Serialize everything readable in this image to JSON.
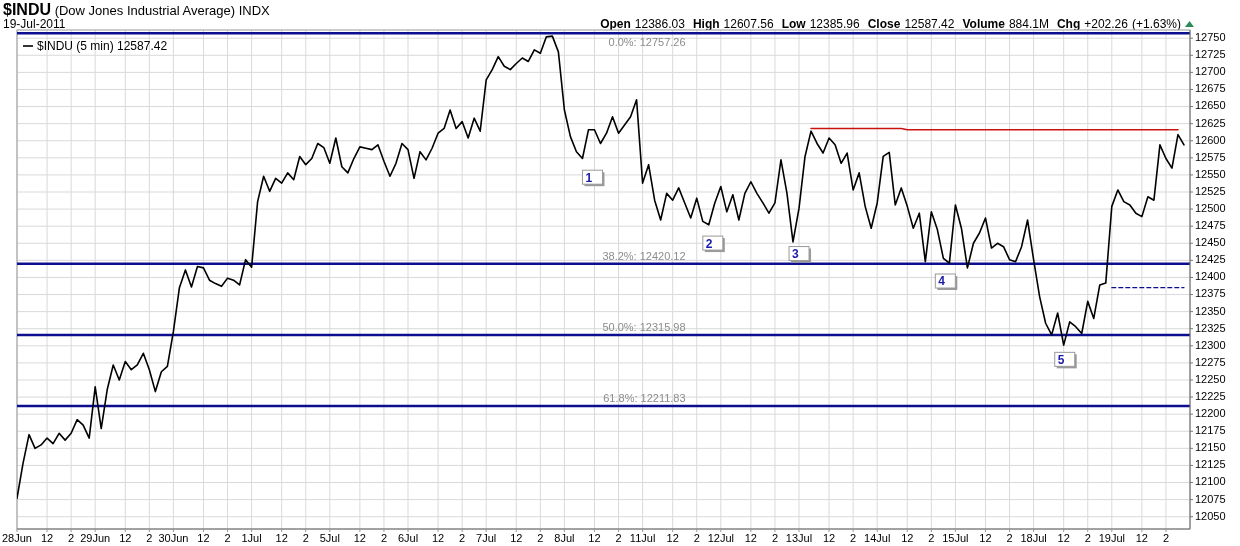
{
  "chart_data": {
    "type": "line",
    "title": "$INDU (Dow Jones Industrial Average) INDX",
    "subtitle": "19-Jul-2011",
    "annotations": [
      "Open 12386.03 High 12607.56 Low 12385.96 Close 12587.42 Volume 884.1M Chg +202.26 (+1.63%)",
      "1",
      "2",
      "3",
      "4",
      "5"
    ],
    "categories": [
      "28Jun",
      null,
      null,
      null,
      null,
      "12",
      null,
      null,
      null,
      "2",
      null,
      null,
      null,
      "29Jun",
      null,
      null,
      null,
      null,
      "12",
      null,
      null,
      null,
      "2",
      null,
      null,
      null,
      "30Jun",
      null,
      null,
      null,
      null,
      "12",
      null,
      null,
      null,
      "2",
      null,
      null,
      null,
      "1Jul",
      null,
      null,
      null,
      null,
      "12",
      null,
      null,
      null,
      "2",
      null,
      null,
      null,
      "5Jul",
      null,
      null,
      null,
      null,
      "12",
      null,
      null,
      null,
      "2",
      null,
      null,
      null,
      "6Jul",
      null,
      null,
      null,
      null,
      "12",
      null,
      null,
      null,
      "2",
      null,
      null,
      null,
      "7Jul",
      null,
      null,
      null,
      null,
      "12",
      null,
      null,
      null,
      "2",
      null,
      null,
      null,
      "8Jul",
      null,
      null,
      null,
      null,
      "12",
      null,
      null,
      null,
      "2",
      null,
      null,
      null,
      "11Jul",
      null,
      null,
      null,
      null,
      "12",
      null,
      null,
      null,
      "2",
      null,
      null,
      null,
      "12Jul",
      null,
      null,
      null,
      null,
      "12",
      null,
      null,
      null,
      "2",
      null,
      null,
      null,
      "13Jul",
      null,
      null,
      null,
      null,
      "12",
      null,
      null,
      null,
      "2",
      null,
      null,
      null,
      "14Jul",
      null,
      null,
      null,
      null,
      "12",
      null,
      null,
      null,
      "2",
      null,
      null,
      null,
      "15Jul",
      null,
      null,
      null,
      null,
      "12",
      null,
      null,
      null,
      "2",
      null,
      null,
      null,
      "18Jul",
      null,
      null,
      null,
      null,
      "12",
      null,
      null,
      null,
      "2",
      null,
      null,
      null,
      "19Jul",
      null,
      null,
      null,
      null,
      "12",
      null,
      null,
      null,
      "2",
      null,
      null,
      null
    ],
    "ylim": [
      12032,
      12762
    ],
    "yticks": [
      12050,
      12075,
      12100,
      12125,
      12150,
      12175,
      12200,
      12225,
      12250,
      12275,
      12300,
      12325,
      12350,
      12375,
      12400,
      12425,
      12450,
      12475,
      12500,
      12525,
      12550,
      12575,
      12600,
      12625,
      12650,
      12675,
      12700,
      12725,
      12750
    ],
    "grid": true,
    "legend": "top left",
    "series": [
      {
        "name": "$INDU (5 min) 12587.42",
        "color": "#000000",
        "values": [
          12077,
          12128,
          12170,
          12150,
          12155,
          12165,
          12157,
          12172,
          12162,
          12172,
          12192,
          12184,
          12165,
          12240,
          12179,
          12236,
          12272,
          12250,
          12277,
          12265,
          12272,
          12289,
          12265,
          12233,
          12262,
          12270,
          12321,
          12385,
          12411,
          12386,
          12416,
          12414,
          12396,
          12391,
          12387,
          12399,
          12396,
          12389,
          12426,
          12415,
          12511,
          12548,
          12526,
          12545,
          12538,
          12553,
          12543,
          12577,
          12565,
          12574,
          12596,
          12590,
          12567,
          12604,
          12562,
          12553,
          12574,
          12591,
          12589,
          12587,
          12594,
          12570,
          12548,
          12567,
          12596,
          12587,
          12545,
          12584,
          12572,
          12589,
          12611,
          12618,
          12645,
          12618,
          12628,
          12604,
          12633,
          12614,
          12689,
          12704,
          12723,
          12709,
          12704,
          12713,
          12721,
          12716,
          12733,
          12728,
          12752,
          12753,
          12730,
          12645,
          12606,
          12584,
          12574,
          12616,
          12616,
          12596,
          12611,
          12635,
          12611,
          12623,
          12635,
          12660,
          12538,
          12565,
          12513,
          12484,
          12523,
          12513,
          12531,
          12509,
          12487,
          12516,
          12482,
          12477,
          12509,
          12533,
          12496,
          12521,
          12484,
          12523,
          12540,
          12523,
          12509,
          12494,
          12509,
          12572,
          12523,
          12452,
          12501,
          12577,
          12614,
          12596,
          12582,
          12604,
          12594,
          12567,
          12582,
          12528,
          12553,
          12504,
          12472,
          12509,
          12577,
          12583,
          12506,
          12531,
          12504,
          12472,
          12494,
          12423,
          12496,
          12470,
          12428,
          12421,
          12506,
          12472,
          12414,
          12450,
          12465,
          12487,
          12443,
          12450,
          12445,
          12426,
          12423,
          12445,
          12484,
          12426,
          12372,
          12333,
          12316,
          12348,
          12301,
          12335,
          12328,
          12318,
          12365,
          12340,
          12389,
          12392,
          12504,
          12528,
          12511,
          12506,
          12494,
          12489,
          12518,
          12513,
          12594,
          12574,
          12560,
          12609,
          12594
        ]
      },
      {
        "color": "#cc1111",
        "values": [
          null,
          null,
          null,
          null,
          null,
          null,
          null,
          null,
          null,
          null,
          null,
          null,
          null,
          null,
          null,
          null,
          null,
          null,
          null,
          null,
          null,
          null,
          null,
          null,
          null,
          null,
          null,
          null,
          null,
          null,
          null,
          null,
          null,
          null,
          null,
          null,
          null,
          null,
          null,
          null,
          null,
          null,
          null,
          null,
          null,
          null,
          null,
          null,
          null,
          null,
          null,
          null,
          null,
          null,
          null,
          null,
          null,
          null,
          null,
          null,
          null,
          null,
          null,
          null,
          null,
          null,
          null,
          null,
          null,
          null,
          null,
          null,
          null,
          null,
          null,
          null,
          null,
          null,
          null,
          null,
          null,
          null,
          null,
          null,
          null,
          null,
          null,
          null,
          null,
          null,
          null,
          null,
          null,
          null,
          null,
          null,
          null,
          null,
          null,
          null,
          null,
          null,
          null,
          null,
          null,
          null,
          null,
          null,
          null,
          null,
          null,
          null,
          null,
          null,
          null,
          null,
          null,
          null,
          null,
          null,
          null,
          null,
          null,
          null,
          null,
          null,
          null,
          null,
          null,
          null,
          null,
          null,
          12618,
          12618,
          12618,
          12618,
          12618,
          12618,
          12618,
          12618,
          12618,
          12618,
          12618,
          12618,
          12618,
          12618,
          12618,
          12618,
          12616,
          12616,
          12616,
          12616,
          12616,
          12616,
          12616,
          12616,
          12616,
          12616,
          12616,
          12616,
          12616,
          12616,
          12616,
          12616,
          12616,
          12616,
          12616,
          12616,
          12616,
          12616,
          12616,
          12616,
          12616,
          12616,
          12616,
          12616,
          12616,
          12616,
          12616,
          12616,
          12616,
          12616,
          12616,
          12616,
          12616,
          12616,
          12616,
          12616,
          12616,
          12616,
          12616,
          12616,
          12616,
          12616,
          null
        ]
      },
      {
        "color": "#0d0d8f",
        "line_style": "dashed",
        "values": [
          null,
          null,
          null,
          null,
          null,
          null,
          null,
          null,
          null,
          null,
          null,
          null,
          null,
          null,
          null,
          null,
          null,
          null,
          null,
          null,
          null,
          null,
          null,
          null,
          null,
          null,
          null,
          null,
          null,
          null,
          null,
          null,
          null,
          null,
          null,
          null,
          null,
          null,
          null,
          null,
          null,
          null,
          null,
          null,
          null,
          null,
          null,
          null,
          null,
          null,
          null,
          null,
          null,
          null,
          null,
          null,
          null,
          null,
          null,
          null,
          null,
          null,
          null,
          null,
          null,
          null,
          null,
          null,
          null,
          null,
          null,
          null,
          null,
          null,
          null,
          null,
          null,
          null,
          null,
          null,
          null,
          null,
          null,
          null,
          null,
          null,
          null,
          null,
          null,
          null,
          null,
          null,
          null,
          null,
          null,
          null,
          null,
          null,
          null,
          null,
          null,
          null,
          null,
          null,
          null,
          null,
          null,
          null,
          null,
          null,
          null,
          null,
          null,
          null,
          null,
          null,
          null,
          null,
          null,
          null,
          null,
          null,
          null,
          null,
          null,
          null,
          null,
          null,
          null,
          null,
          null,
          null,
          null,
          null,
          null,
          null,
          null,
          null,
          null,
          null,
          null,
          null,
          null,
          null,
          null,
          null,
          null,
          null,
          null,
          null,
          null,
          null,
          null,
          null,
          null,
          null,
          null,
          null,
          null,
          null,
          null,
          null,
          null,
          null,
          null,
          null,
          null,
          null,
          null,
          null,
          null,
          null,
          null,
          null,
          null,
          null,
          null,
          null,
          null,
          null,
          null,
          null,
          12385,
          12385,
          12385,
          12385,
          12385,
          12385,
          12385,
          12385,
          12385,
          12385,
          12385,
          12385,
          12385
        ]
      }
    ],
    "ref_lines": [
      {
        "axis": "y",
        "value": 12757.26,
        "label": "0.0%: 12757.26",
        "color": "#0d0d8f"
      },
      {
        "axis": "y",
        "value": 12420.12,
        "label": "38.2%: 12420.12",
        "color": "#0d0d8f"
      },
      {
        "axis": "y",
        "value": 12315.98,
        "label": "50.0%: 12315.98",
        "color": "#0d0d8f"
      },
      {
        "axis": "y",
        "value": 12211.83,
        "label": "61.8%: 12211.83",
        "color": "#0d0d8f"
      }
    ]
  }
}
